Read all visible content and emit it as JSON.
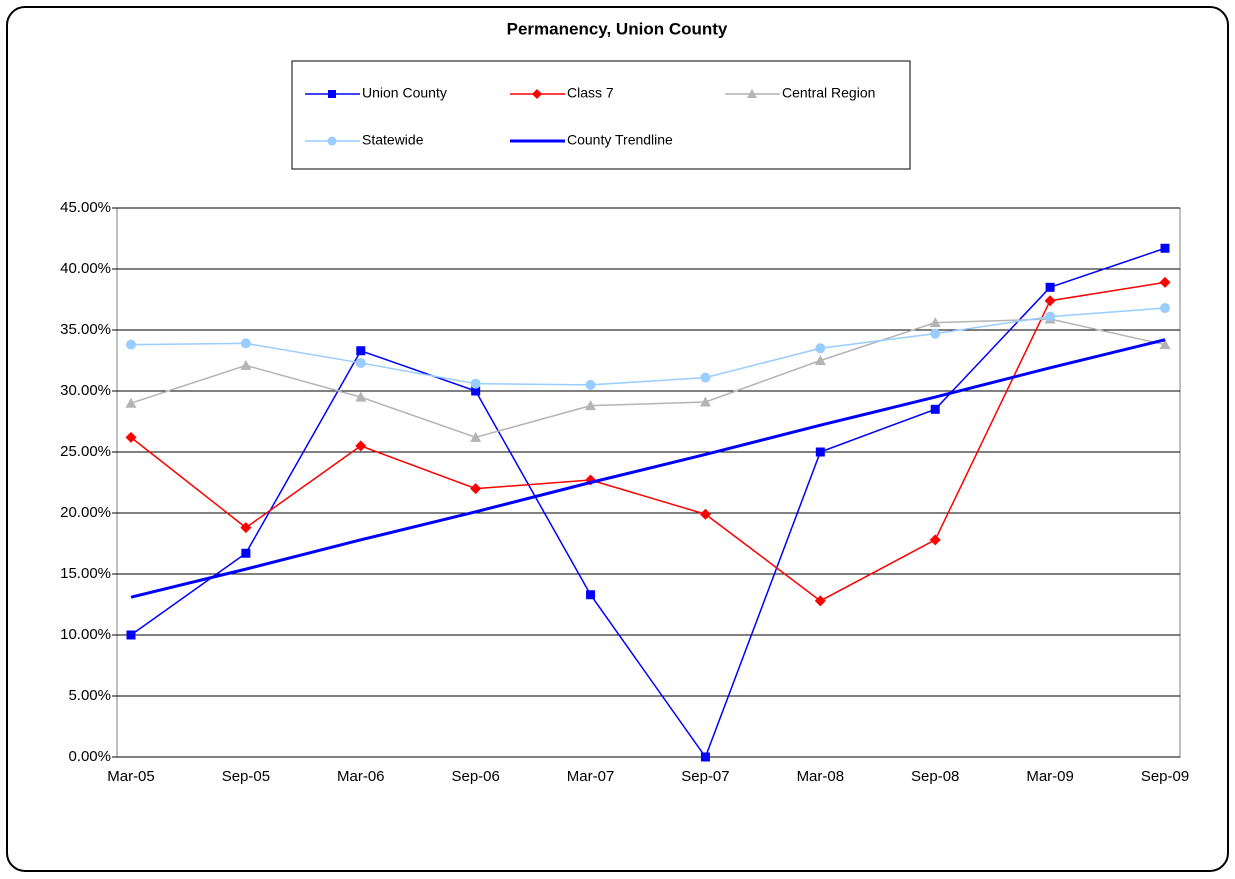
{
  "chart_data": {
    "type": "line",
    "title": "Permanency, Union County",
    "categories": [
      "Mar-05",
      "Sep-05",
      "Mar-06",
      "Sep-06",
      "Mar-07",
      "Sep-07",
      "Mar-08",
      "Sep-08",
      "Mar-09",
      "Sep-09"
    ],
    "series": [
      {
        "name": "Union County",
        "color": "#0000ff",
        "marker": "square",
        "width": 1.5,
        "values": [
          10.0,
          16.7,
          33.3,
          30.0,
          13.3,
          0.0,
          25.0,
          28.5,
          38.5,
          41.7
        ]
      },
      {
        "name": "Class 7",
        "color": "#ff0000",
        "marker": "diamond",
        "width": 1.5,
        "values": [
          26.2,
          18.8,
          25.5,
          22.0,
          22.7,
          19.9,
          12.8,
          17.8,
          37.4,
          38.9
        ]
      },
      {
        "name": "Central Region",
        "color": "#b4b4b4",
        "marker": "triangle",
        "width": 1.5,
        "values": [
          29.0,
          32.1,
          29.5,
          26.2,
          28.8,
          29.1,
          32.5,
          35.6,
          35.9,
          33.8
        ]
      },
      {
        "name": "Statewide",
        "color": "#99ccff",
        "marker": "circle",
        "width": 1.5,
        "values": [
          33.8,
          33.9,
          32.3,
          30.6,
          30.5,
          31.1,
          33.5,
          34.7,
          36.1,
          36.8
        ]
      },
      {
        "name": "County Trendline",
        "color": "#0000ff",
        "marker": "none",
        "width": 3,
        "values": [
          13.1,
          15.4,
          17.8,
          20.1,
          22.5,
          24.8,
          27.2,
          29.5,
          31.9,
          34.2
        ]
      }
    ],
    "ylim": [
      0,
      45
    ],
    "yticks": [
      {
        "value": 0,
        "label": "0.00%"
      },
      {
        "value": 5,
        "label": "5.00%"
      },
      {
        "value": 10,
        "label": "10.00%"
      },
      {
        "value": 15,
        "label": "15.00%"
      },
      {
        "value": 20,
        "label": "20.00%"
      },
      {
        "value": 25,
        "label": "25.00%"
      },
      {
        "value": 30,
        "label": "30.00%"
      },
      {
        "value": 35,
        "label": "35.00%"
      },
      {
        "value": 40,
        "label": "40.00%"
      },
      {
        "value": 45,
        "label": "45.00%"
      }
    ],
    "grid": true
  }
}
